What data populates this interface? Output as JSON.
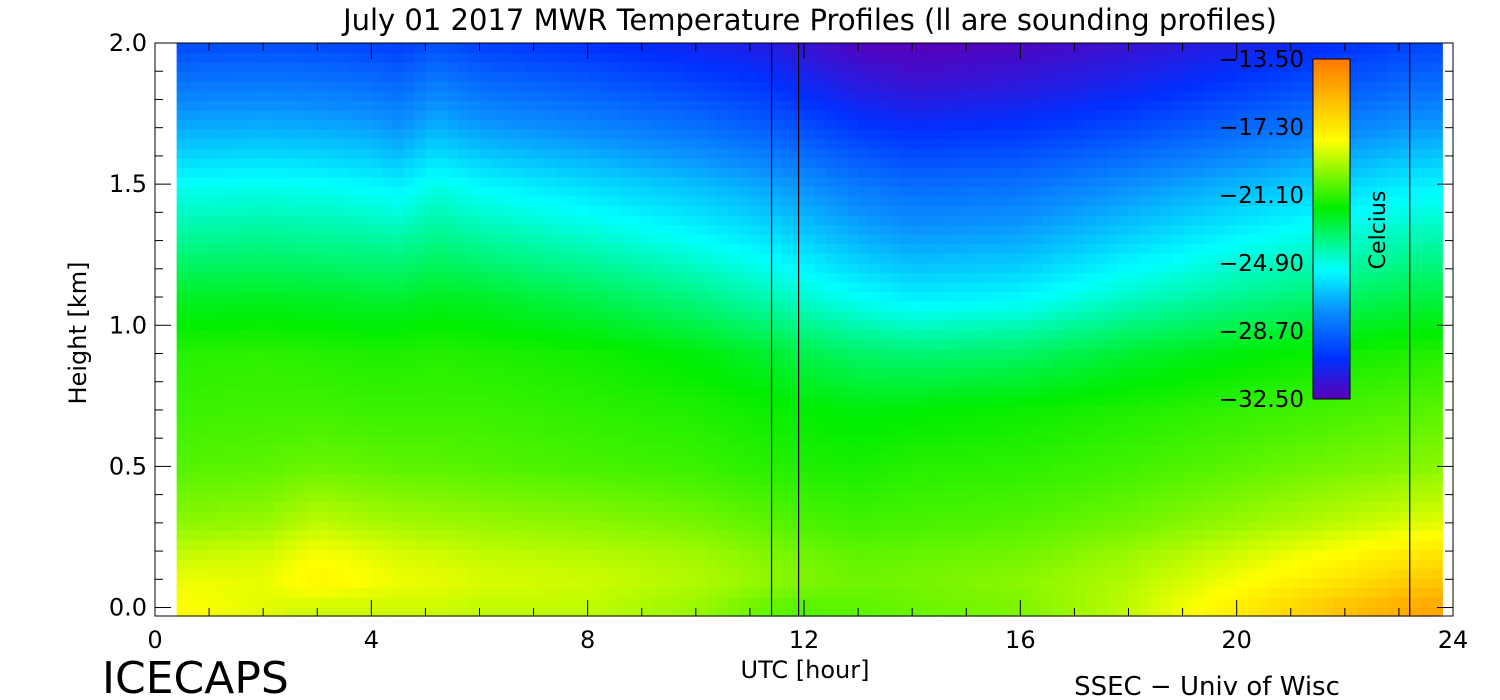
{
  "chart_data": {
    "type": "heatmap",
    "title": "July 01 2017 MWR Temperature Profiles (ll are sounding profiles)",
    "xlabel": "UTC [hour]",
    "ylabel": "Height [km]",
    "xlim": [
      0,
      24
    ],
    "ylim": [
      -0.03,
      2.0
    ],
    "x_ticks": [
      0,
      4,
      8,
      12,
      16,
      20,
      24
    ],
    "x_tick_labels": [
      "0",
      "4",
      "8",
      "12",
      "16",
      "20",
      "24"
    ],
    "y_ticks": [
      0.0,
      0.5,
      1.0,
      1.5,
      2.0
    ],
    "y_tick_labels": [
      "0.0",
      "0.5",
      "1.0",
      "1.5",
      "2.0"
    ],
    "data_x_range": [
      0.4,
      23.8
    ],
    "colorbar": {
      "label": "Celcius",
      "min": -32.5,
      "max": -13.5,
      "ticks": [
        -13.5,
        -17.3,
        -21.1,
        -24.9,
        -28.7,
        -32.5
      ],
      "tick_labels": [
        "−13.50",
        "−17.30",
        "−21.10",
        "−24.90",
        "−28.70",
        "−32.50"
      ]
    },
    "sounding_times": [
      11.4,
      11.9,
      23.2
    ],
    "heights": [
      0.0,
      0.1,
      0.2,
      0.3,
      0.5,
      0.7,
      0.9,
      1.1,
      1.3,
      1.5,
      1.7,
      1.85,
      2.0
    ],
    "times": [
      0.4,
      2,
      3,
      4,
      4.5,
      5.2,
      6,
      8,
      10,
      11.4,
      11.9,
      13,
      14,
      16,
      18,
      20,
      22,
      23.2,
      23.8
    ],
    "temperature_profiles": [
      [
        -18.0,
        -18.3,
        -19.0,
        -19.8,
        -20.6,
        -21.0,
        -21.3,
        -22.4,
        -23.8,
        -25.2,
        -27.0,
        -28.2,
        -29.5
      ],
      [
        -18.5,
        -18.4,
        -18.8,
        -19.6,
        -20.5,
        -20.9,
        -21.2,
        -22.3,
        -23.7,
        -25.1,
        -26.9,
        -28.1,
        -29.4
      ],
      [
        -18.8,
        -17.7,
        -18.2,
        -19.0,
        -20.3,
        -20.9,
        -21.3,
        -22.4,
        -23.8,
        -25.2,
        -27.0,
        -28.2,
        -29.5
      ],
      [
        -18.8,
        -18.1,
        -18.5,
        -19.3,
        -20.4,
        -21.0,
        -21.4,
        -22.5,
        -23.9,
        -25.4,
        -27.2,
        -28.4,
        -29.7
      ],
      [
        -18.8,
        -18.3,
        -18.7,
        -19.4,
        -20.5,
        -21.0,
        -21.4,
        -22.5,
        -24.0,
        -25.6,
        -27.5,
        -28.6,
        -29.9
      ],
      [
        -18.8,
        -18.4,
        -18.8,
        -19.5,
        -20.5,
        -21.0,
        -21.3,
        -22.3,
        -23.6,
        -25.0,
        -26.8,
        -28.0,
        -29.3
      ],
      [
        -19.0,
        -18.6,
        -19.0,
        -19.6,
        -20.6,
        -21.0,
        -21.4,
        -22.4,
        -23.9,
        -25.4,
        -27.3,
        -28.5,
        -29.8
      ],
      [
        -19.0,
        -18.8,
        -19.2,
        -19.8,
        -20.8,
        -21.2,
        -21.6,
        -22.9,
        -24.5,
        -26.0,
        -27.8,
        -29.0,
        -30.2
      ],
      [
        -19.6,
        -19.2,
        -19.5,
        -20.1,
        -21.0,
        -21.4,
        -22.0,
        -23.6,
        -25.2,
        -26.6,
        -28.4,
        -29.6,
        -30.8
      ],
      [
        -20.4,
        -19.7,
        -20.0,
        -20.5,
        -21.3,
        -21.7,
        -22.5,
        -24.3,
        -25.8,
        -27.2,
        -29.0,
        -30.1,
        -31.2
      ],
      [
        -20.6,
        -19.9,
        -20.2,
        -20.7,
        -21.4,
        -21.8,
        -22.8,
        -24.6,
        -26.1,
        -27.5,
        -29.3,
        -30.5,
        -31.6
      ],
      [
        -20.5,
        -20.2,
        -20.5,
        -20.9,
        -21.5,
        -22.0,
        -23.2,
        -25.2,
        -26.8,
        -28.2,
        -30.0,
        -31.2,
        -32.3
      ],
      [
        -20.3,
        -20.1,
        -20.4,
        -20.8,
        -21.3,
        -21.9,
        -23.4,
        -25.6,
        -27.2,
        -28.6,
        -30.3,
        -31.6,
        -32.5
      ],
      [
        -20.0,
        -19.8,
        -20.2,
        -20.6,
        -21.2,
        -21.7,
        -23.2,
        -25.4,
        -27.0,
        -28.4,
        -30.1,
        -31.3,
        -32.2
      ],
      [
        -19.0,
        -19.2,
        -19.6,
        -20.2,
        -20.9,
        -21.4,
        -22.5,
        -24.5,
        -26.1,
        -27.6,
        -29.5,
        -30.7,
        -31.7
      ],
      [
        -17.5,
        -18.2,
        -18.8,
        -19.6,
        -20.5,
        -21.1,
        -22.0,
        -23.8,
        -25.3,
        -26.8,
        -28.7,
        -29.9,
        -31.0
      ],
      [
        -16.0,
        -17.2,
        -18.0,
        -19.0,
        -20.1,
        -20.8,
        -21.6,
        -23.2,
        -24.6,
        -26.1,
        -27.9,
        -29.1,
        -30.2
      ],
      [
        -15.2,
        -16.4,
        -17.5,
        -18.6,
        -19.9,
        -20.6,
        -21.4,
        -22.8,
        -24.2,
        -25.6,
        -27.4,
        -28.6,
        -29.7
      ],
      [
        -15.0,
        -16.2,
        -17.3,
        -18.5,
        -19.8,
        -20.5,
        -21.3,
        -22.7,
        -24.1,
        -25.5,
        -27.3,
        -28.5,
        -29.6
      ]
    ]
  },
  "logo_text": "ICECAPS",
  "credit_text": "SSEC − Univ of Wisc"
}
